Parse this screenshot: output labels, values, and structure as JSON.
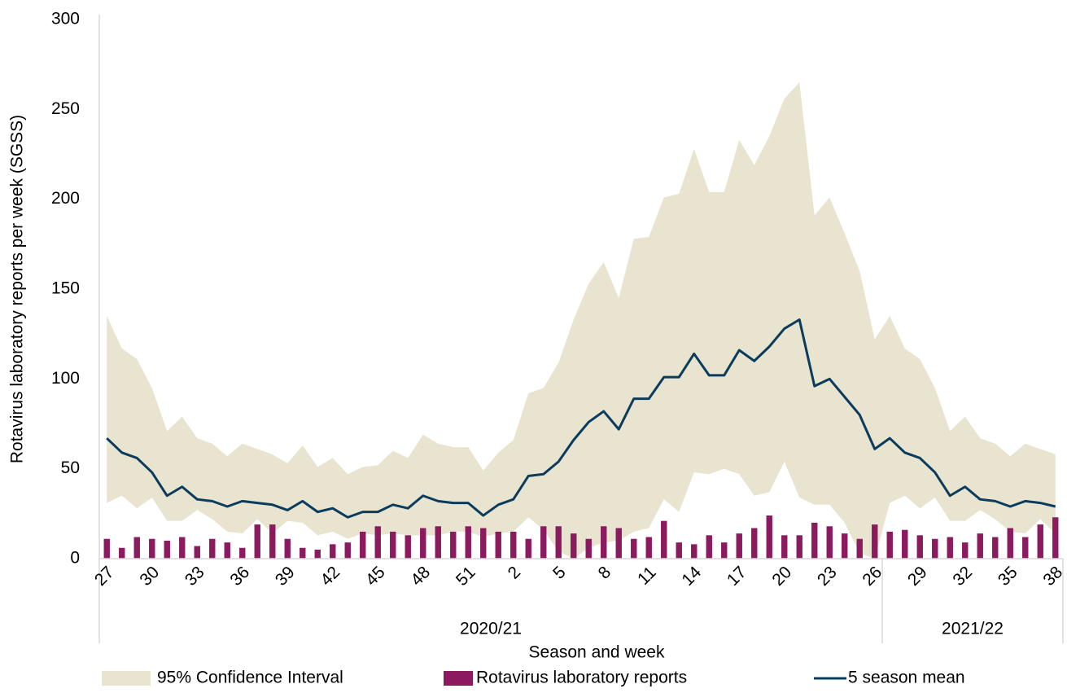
{
  "chart_data": {
    "type": "combo",
    "y_label": "Rotavirus laboratory reports per week (SGSS)",
    "x_label": "Season and week",
    "categories": [
      "27",
      null,
      null,
      "30",
      null,
      null,
      "33",
      null,
      null,
      "36",
      null,
      null,
      "39",
      null,
      null,
      "42",
      null,
      null,
      "45",
      null,
      null,
      "48",
      null,
      null,
      "51",
      null,
      null,
      "2",
      null,
      null,
      "5",
      null,
      null,
      "8",
      null,
      null,
      "11",
      null,
      null,
      "14",
      null,
      null,
      "17",
      null,
      null,
      "20",
      null,
      null,
      "23",
      null,
      null,
      "26",
      null,
      null,
      "29",
      null,
      null,
      "32",
      null,
      null,
      "35",
      null,
      null,
      "38"
    ],
    "groups": [
      {
        "name": "2020/21",
        "count": 52
      },
      {
        "name": "2021/22",
        "count": 12
      }
    ],
    "ylim": [
      0,
      300
    ],
    "yticks": [
      0,
      50,
      100,
      150,
      200,
      250,
      300
    ],
    "series": [
      {
        "name": "95% Confidence Interval",
        "type": "band",
        "color": "#e8e4cf",
        "upper": [
          135,
          117,
          111,
          95,
          71,
          79,
          67,
          64,
          57,
          64,
          61,
          58,
          53,
          63,
          51,
          56,
          47,
          51,
          52,
          60,
          56,
          69,
          64,
          62,
          62,
          49,
          59,
          66,
          92,
          95,
          109,
          133,
          153,
          165,
          145,
          178,
          179,
          201,
          203,
          228,
          204,
          204,
          233,
          219,
          235,
          256,
          265,
          191,
          201,
          181,
          160,
          122,
          135,
          117,
          111,
          95,
          71,
          79,
          67,
          64,
          57,
          64,
          61,
          58
        ],
        "lower": [
          31,
          35,
          28,
          34,
          21,
          21,
          27,
          22,
          15,
          14,
          22,
          14,
          21,
          20,
          13,
          15,
          11,
          14,
          13,
          14,
          13,
          13,
          13,
          15,
          15,
          12,
          14,
          15,
          23,
          16,
          4,
          0,
          6,
          9,
          10,
          15,
          17,
          33,
          26,
          48,
          47,
          50,
          47,
          35,
          37,
          54,
          34,
          30,
          30,
          20,
          3,
          0,
          31,
          35,
          28,
          34,
          21,
          21,
          27,
          22,
          15,
          14,
          22,
          14
        ]
      },
      {
        "name": "Rotavirus laboratory reports",
        "type": "bar",
        "color": "#8b1a5e",
        "values": [
          11,
          6,
          12,
          11,
          10,
          12,
          7,
          11,
          9,
          6,
          19,
          19,
          11,
          6,
          5,
          8,
          9,
          15,
          18,
          15,
          13,
          17,
          18,
          15,
          18,
          17,
          15,
          15,
          11,
          18,
          18,
          14,
          11,
          18,
          17,
          11,
          12,
          21,
          9,
          8,
          13,
          9,
          14,
          17,
          24,
          13,
          13,
          20,
          18,
          14,
          11,
          19,
          15,
          16,
          13,
          11,
          12,
          9,
          14,
          12,
          17,
          12,
          19,
          23
        ]
      },
      {
        "name": "5 season mean",
        "type": "line",
        "color": "#0b3c5d",
        "values": [
          67,
          59,
          56,
          48,
          35,
          40,
          33,
          32,
          29,
          32,
          31,
          30,
          27,
          32,
          26,
          28,
          23,
          26,
          26,
          30,
          28,
          35,
          32,
          31,
          31,
          24,
          30,
          33,
          46,
          47,
          54,
          66,
          76,
          82,
          72,
          89,
          89,
          101,
          101,
          114,
          102,
          102,
          116,
          110,
          118,
          128,
          133,
          96,
          100,
          90,
          80,
          61,
          67,
          59,
          56,
          48,
          35,
          40,
          33,
          32,
          29,
          32,
          31,
          29
        ]
      }
    ]
  }
}
